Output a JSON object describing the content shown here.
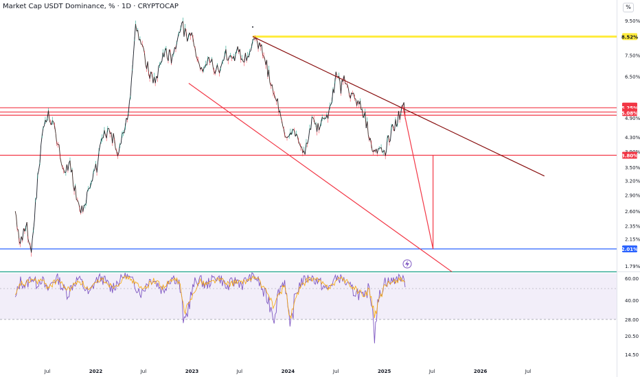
{
  "header": {
    "title": "Market Cap USDT Dominance, % · 1D · CRYPTOCAP",
    "scale_label": "%"
  },
  "chart_data": [
    {
      "type": "line",
      "panel": "price",
      "y_scale": "log",
      "ylim": [
        1.7,
        10.2
      ],
      "y_ticks": [
        "9.50%",
        "7.50%",
        "6.50%",
        "4.90%",
        "4.30%",
        "3.90%",
        "3.50%",
        "3.20%",
        "2.90%",
        "2.60%",
        "2.35%",
        "2.15%",
        "1.79%"
      ],
      "y_tick_values": [
        9.5,
        7.5,
        6.5,
        4.9,
        4.3,
        3.9,
        3.5,
        3.2,
        2.9,
        2.6,
        2.35,
        2.15,
        1.79
      ],
      "x_ticks": [
        "Jul",
        "2022",
        "Jul",
        "2023",
        "Jul",
        "2024",
        "Jul",
        "2025",
        "Jul",
        "2026",
        "Jul"
      ],
      "x_tick_dates": [
        "2021-07-01",
        "2022-01-01",
        "2022-07-01",
        "2023-01-01",
        "2023-07-01",
        "2024-01-01",
        "2024-07-01",
        "2025-01-01",
        "2025-07-01",
        "2026-01-01",
        "2026-07-01"
      ],
      "series": [
        {
          "points": [
            [
              "2021-03-01",
              2.6
            ],
            [
              "2021-03-20",
              2.1
            ],
            [
              "2021-04-10",
              2.4
            ],
            [
              "2021-05-01",
              2.0
            ],
            [
              "2021-05-25",
              3.2
            ],
            [
              "2021-06-15",
              4.6
            ],
            [
              "2021-07-05",
              5.0
            ],
            [
              "2021-07-20",
              4.7
            ],
            [
              "2021-08-10",
              4.2
            ],
            [
              "2021-09-01",
              3.3
            ],
            [
              "2021-09-25",
              3.6
            ],
            [
              "2021-10-15",
              3.0
            ],
            [
              "2021-11-05",
              2.65
            ],
            [
              "2021-11-25",
              2.75
            ],
            [
              "2021-12-15",
              3.3
            ],
            [
              "2022-01-05",
              3.5
            ],
            [
              "2022-01-25",
              4.2
            ],
            [
              "2022-02-15",
              4.5
            ],
            [
              "2022-03-05",
              4.3
            ],
            [
              "2022-03-25",
              3.95
            ],
            [
              "2022-04-15",
              4.4
            ],
            [
              "2022-05-05",
              5.2
            ],
            [
              "2022-05-20",
              6.8
            ],
            [
              "2022-06-01",
              9.6
            ],
            [
              "2022-06-18",
              8.2
            ],
            [
              "2022-07-05",
              7.4
            ],
            [
              "2022-07-25",
              6.6
            ],
            [
              "2022-08-15",
              6.3
            ],
            [
              "2022-09-05",
              7.2
            ],
            [
              "2022-09-25",
              7.6
            ],
            [
              "2022-10-15",
              7.4
            ],
            [
              "2022-11-05",
              8.2
            ],
            [
              "2022-11-20",
              9.4
            ],
            [
              "2022-12-10",
              8.6
            ],
            [
              "2023-01-05",
              8.7
            ],
            [
              "2023-01-25",
              7.2
            ],
            [
              "2023-02-15",
              6.9
            ],
            [
              "2023-03-10",
              7.3
            ],
            [
              "2023-03-30",
              6.8
            ],
            [
              "2023-04-20",
              7.0
            ],
            [
              "2023-05-10",
              7.5
            ],
            [
              "2023-06-01",
              7.2
            ],
            [
              "2023-06-20",
              7.7
            ],
            [
              "2023-07-10",
              7.4
            ],
            [
              "2023-08-01",
              7.6
            ],
            [
              "2023-08-20",
              8.3
            ],
            [
              "2023-09-10",
              8.1
            ],
            [
              "2023-10-01",
              7.6
            ],
            [
              "2023-10-20",
              6.6
            ],
            [
              "2023-11-10",
              5.6
            ],
            [
              "2023-12-01",
              5.2
            ],
            [
              "2023-12-20",
              4.5
            ],
            [
              "2024-01-10",
              4.3
            ],
            [
              "2024-01-25",
              4.6
            ],
            [
              "2024-02-10",
              4.1
            ],
            [
              "2024-03-01",
              3.85
            ],
            [
              "2024-03-15",
              4.2
            ],
            [
              "2024-04-01",
              4.8
            ],
            [
              "2024-04-20",
              4.6
            ],
            [
              "2024-05-10",
              4.9
            ],
            [
              "2024-06-01",
              5.1
            ],
            [
              "2024-06-20",
              5.8
            ],
            [
              "2024-07-05",
              6.7
            ],
            [
              "2024-07-20",
              6.0
            ],
            [
              "2024-08-05",
              6.4
            ],
            [
              "2024-08-25",
              5.7
            ],
            [
              "2024-09-10",
              5.6
            ],
            [
              "2024-10-01",
              5.3
            ],
            [
              "2024-10-20",
              4.9
            ],
            [
              "2024-11-05",
              4.4
            ],
            [
              "2024-11-20",
              3.95
            ],
            [
              "2024-12-05",
              3.85
            ],
            [
              "2024-12-20",
              4.1
            ],
            [
              "2025-01-05",
              3.9
            ],
            [
              "2025-01-20",
              4.3
            ],
            [
              "2025-02-05",
              4.6
            ],
            [
              "2025-02-20",
              4.8
            ],
            [
              "2025-03-05",
              5.2
            ],
            [
              "2025-03-12",
              5.31
            ],
            [
              "2025-03-25",
              5.1
            ]
          ]
        }
      ],
      "price_labels": [
        {
          "text": "8.52%",
          "value": 8.52,
          "bg": "#ffeb3b",
          "fg": "#131722"
        },
        {
          "text": "5.31%",
          "value": 5.31,
          "bg": "#f23645",
          "fg": "#ffffff"
        },
        {
          "text": "5.25%",
          "value": 5.25,
          "bg": "#f23645",
          "fg": "#ffffff"
        },
        {
          "text": "5.10%",
          "value": 5.1,
          "bg": "#f23645",
          "fg": "#ffffff"
        },
        {
          "text": "5.08%",
          "value": 5.08,
          "bg": "#f23645",
          "fg": "#ffffff"
        },
        {
          "text": "3.80%",
          "value": 3.8,
          "bg": "#f23645",
          "fg": "#ffffff"
        },
        {
          "text": "2.01%",
          "value": 2.01,
          "bg": "#2962ff",
          "fg": "#ffffff"
        }
      ],
      "horizontal_lines": [
        {
          "value": 8.52,
          "color": "#ffeb3b",
          "from": "2023-08-20"
        },
        {
          "value": 5.25,
          "color": "#f23645"
        },
        {
          "value": 5.1,
          "color": "#f23645"
        },
        {
          "value": 4.99,
          "color": "#f23645"
        },
        {
          "value": 3.8,
          "color": "#f23645"
        },
        {
          "value": 2.01,
          "color": "#2962ff"
        },
        {
          "value": 1.72,
          "color": "#089981"
        }
      ],
      "trend_lines": [
        {
          "from": [
            "2023-08-20",
            8.52
          ],
          "to": [
            "2026-09-01",
            3.3
          ],
          "color": "#880e0e"
        },
        {
          "from": [
            "2022-12-20",
            6.2
          ],
          "to": [
            "2025-09-15",
            1.72
          ],
          "color": "#f23645"
        },
        {
          "from": [
            "2025-03-12",
            5.31
          ],
          "to": [
            "2025-07-05",
            2.01
          ],
          "color": "#f23645"
        },
        {
          "from": [
            "2025-07-05",
            3.8
          ],
          "to": [
            "2025-07-05",
            2.01
          ],
          "color": "#f23645"
        }
      ],
      "colors": {
        "up": "#089981",
        "down": "#f23645",
        "price_line": "#131722"
      }
    },
    {
      "type": "line",
      "panel": "oscillator",
      "ylim": [
        10,
        70
      ],
      "y_ticks": [
        "60.00",
        "40.00",
        "28.00",
        "20.50",
        "14.50"
      ],
      "y_tick_values": [
        60,
        40,
        28,
        20.5,
        14.5
      ],
      "band": [
        28,
        68
      ],
      "midline": 50,
      "series": [
        {
          "color": "#7e57c2",
          "values": [
            40,
            58,
            52,
            62,
            55,
            60,
            48,
            56,
            62,
            50,
            46,
            55,
            60,
            52,
            44,
            56,
            62,
            58,
            50,
            54,
            60,
            65,
            58,
            52,
            46,
            56,
            60,
            54,
            48,
            58,
            62,
            55,
            24,
            40,
            56,
            60,
            52,
            58,
            62,
            60,
            50,
            56,
            58,
            54,
            60,
            64,
            58,
            46,
            40,
            30,
            50,
            58,
            20,
            44,
            56,
            60,
            62,
            58,
            54,
            48,
            56,
            62,
            60,
            52,
            48,
            46,
            40,
            52,
            24,
            44,
            58,
            56,
            60,
            62,
            54
          ]
        },
        {
          "color": "#f7a600",
          "values": [
            42,
            55,
            54,
            59,
            57,
            58,
            52,
            54,
            59,
            53,
            49,
            53,
            58,
            54,
            48,
            53,
            59,
            58,
            53,
            53,
            58,
            62,
            59,
            54,
            49,
            53,
            58,
            56,
            51,
            55,
            59,
            57,
            32,
            38,
            50,
            57,
            55,
            56,
            59,
            59,
            54,
            55,
            57,
            55,
            58,
            62,
            59,
            50,
            44,
            36,
            45,
            54,
            28,
            40,
            51,
            57,
            60,
            59,
            56,
            51,
            54,
            59,
            60,
            55,
            51,
            48,
            43,
            49,
            30,
            40,
            53,
            55,
            58,
            60,
            56
          ]
        }
      ]
    }
  ]
}
